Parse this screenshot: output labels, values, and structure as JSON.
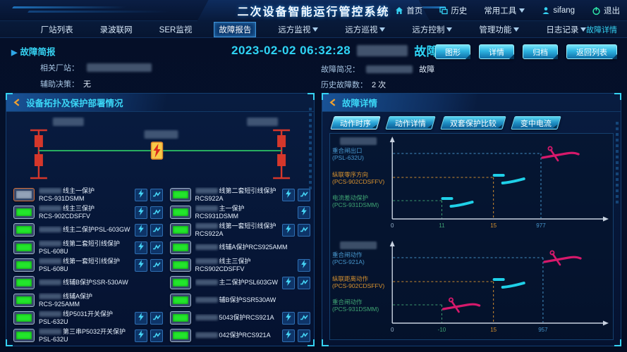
{
  "app": {
    "title": "二次设备智能运行管控系统"
  },
  "header": {
    "links": [
      {
        "label": "首页",
        "icon": "home-icon"
      },
      {
        "label": "历史",
        "icon": "history-icon"
      },
      {
        "label": "常用工具",
        "icon": "caret-down-icon",
        "caret_after": true
      },
      {
        "label": "sifang",
        "icon": "user-icon"
      },
      {
        "label": "退出",
        "icon": "power-icon"
      }
    ]
  },
  "navbar": {
    "items": [
      {
        "label": "厂站列表"
      },
      {
        "label": "录波联网"
      },
      {
        "label": "SER监视"
      },
      {
        "label": "故障报告",
        "active": true
      },
      {
        "label": "远方监视",
        "dropdown": true
      },
      {
        "label": "远方巡视",
        "dropdown": true
      },
      {
        "label": "远方控制",
        "dropdown": true
      },
      {
        "label": "管理功能",
        "dropdown": true
      },
      {
        "label": "日志记录",
        "dropdown": true
      }
    ],
    "right_link": "故障详情"
  },
  "brief": {
    "title": "故障简报",
    "datetime": "2023-02-02 06:32:28",
    "fault_word": "故障",
    "related_station_label": "相关厂站：",
    "aux_decision_label": "辅助决策：",
    "aux_decision_value": "无",
    "summary_label": "故障简况：",
    "summary_suffix": "故障",
    "history_label": "历史故障数：",
    "history_value": "2 次",
    "buttons": [
      "图形",
      "详情",
      "归档",
      "返回列表"
    ]
  },
  "topology": {
    "title": "设备拓扑及保护部署情况"
  },
  "devices": {
    "col1": [
      {
        "line1": "线主一保护",
        "line2": "RCS-931DSMM",
        "status": "alarm",
        "actions": [
          "bolt",
          "wave"
        ]
      },
      {
        "line1": "线主三保护",
        "line2": "RCS-902CDSFFV",
        "status": "ok",
        "actions": [
          "bolt",
          "wave"
        ]
      },
      {
        "line1": "线主二保护PSL-603GW",
        "line2": "",
        "status": "ok",
        "actions": [
          "bolt",
          "wave"
        ]
      },
      {
        "line1": "线第二套短引线保护",
        "line2": "PSL-608U",
        "status": "ok",
        "actions": [
          "bolt",
          "wave"
        ]
      },
      {
        "line1": "线第一套短引线保护",
        "line2": "PSL-608U",
        "status": "ok",
        "actions": [
          "bolt",
          "wave"
        ]
      },
      {
        "line1": "线辅B保护SSR-530AW",
        "line2": "",
        "status": "ok",
        "actions": []
      },
      {
        "line1": "线辅A保护",
        "line2": "RCS-925AMM",
        "status": "ok",
        "actions": []
      },
      {
        "line1": "线P5031开关保护",
        "line2": "PSL-632U",
        "status": "ok",
        "actions": [
          "bolt",
          "wave"
        ]
      },
      {
        "line1": "第三串P5032开关保护",
        "line2": "PSL-632U",
        "status": "ok",
        "actions": [
          "bolt",
          "wave"
        ]
      }
    ],
    "col2": [
      {
        "line1": "线第二套短引线保护",
        "line2": "RCS922A",
        "status": "ok",
        "actions": [
          "bolt",
          "wave"
        ]
      },
      {
        "line1": "主一保护",
        "line2": "RCS931DSMM",
        "status": "ok",
        "actions": [
          "bolt"
        ]
      },
      {
        "line1": "线第一套短引线保护",
        "line2": "RCS922A",
        "status": "ok",
        "actions": [
          "bolt",
          "wave"
        ]
      },
      {
        "line1": "线辅A保护RCS925AMM",
        "line2": "",
        "status": "ok",
        "actions": []
      },
      {
        "line1": "线主三保护",
        "line2": "RCS902CDSFFV",
        "status": "ok",
        "actions": [
          "bolt"
        ]
      },
      {
        "line1": "主二保护PSL603GW",
        "line2": "",
        "status": "ok",
        "actions": [
          "bolt",
          "wave"
        ]
      },
      {
        "line1": "辅B保护SSR530AW",
        "line2": "",
        "status": "ok",
        "actions": []
      },
      {
        "line1": "5043保护RCS921A",
        "line2": "",
        "status": "ok",
        "actions": [
          "bolt",
          "wave"
        ]
      },
      {
        "line1": "042保护RCS921A",
        "line2": "",
        "status": "ok",
        "actions": [
          "bolt",
          "wave"
        ]
      }
    ]
  },
  "details": {
    "title": "故障详情",
    "tabs": [
      {
        "label": "动作时序",
        "active": true
      },
      {
        "label": "动作详情"
      },
      {
        "label": "双套保护比较"
      },
      {
        "label": "变中电流"
      }
    ]
  },
  "chart_data": [
    {
      "type": "timeline",
      "title": "",
      "legend": "none",
      "grid": false,
      "x_axis": "time (ms), non-linear spacing",
      "rows": [
        {
          "label": "重合闸出口",
          "device": "(PSL-632U)",
          "value": 977,
          "marker": "reclose-scissor",
          "color": "#4796cc",
          "pos": 0.72
        },
        {
          "label": "纵联零序方向",
          "device": "(PCS-902CDSFFV)",
          "value": 15,
          "marker": "switch",
          "color": "#d8922f",
          "pos": 0.49
        },
        {
          "label": "电流差动保护",
          "device": "(PCS-931DSMM)",
          "value": 11,
          "marker": "switch",
          "color": "#3fa473",
          "pos": 0.24
        }
      ],
      "x_ticks": [
        "0",
        "11",
        "15",
        "977"
      ]
    },
    {
      "type": "timeline",
      "title": "",
      "legend": "none",
      "grid": false,
      "x_axis": "time (ms), non-linear spacing",
      "rows": [
        {
          "label": "重合闸动作",
          "device": "(PCS-921A)",
          "value": 957,
          "marker": "reclose-scissor",
          "color": "#4796cc",
          "pos": 0.73
        },
        {
          "label": "纵联距离动作",
          "device": "(PCS-902CDSFFV)",
          "value": 15,
          "marker": "switch",
          "color": "#d8922f",
          "pos": 0.49
        },
        {
          "label": "重合闸动作",
          "device": "(PCS-931DSMM)",
          "value": -10,
          "marker": "reclose-scissor",
          "color": "#3fa473",
          "pos": 0.24
        }
      ],
      "x_ticks": [
        "0",
        "-10",
        "15",
        "957"
      ]
    }
  ],
  "colors": {
    "accent_cyan": "#35d2f2",
    "alarm_red": "#d5372b",
    "ok_green": "#23e52c",
    "line_green": "#27ae60",
    "fault_bolt_bg": "#f7c948",
    "marker_cyan": "#1fd0e8",
    "marker_crimson": "#d6196b",
    "axis": "#c8d2e0"
  }
}
